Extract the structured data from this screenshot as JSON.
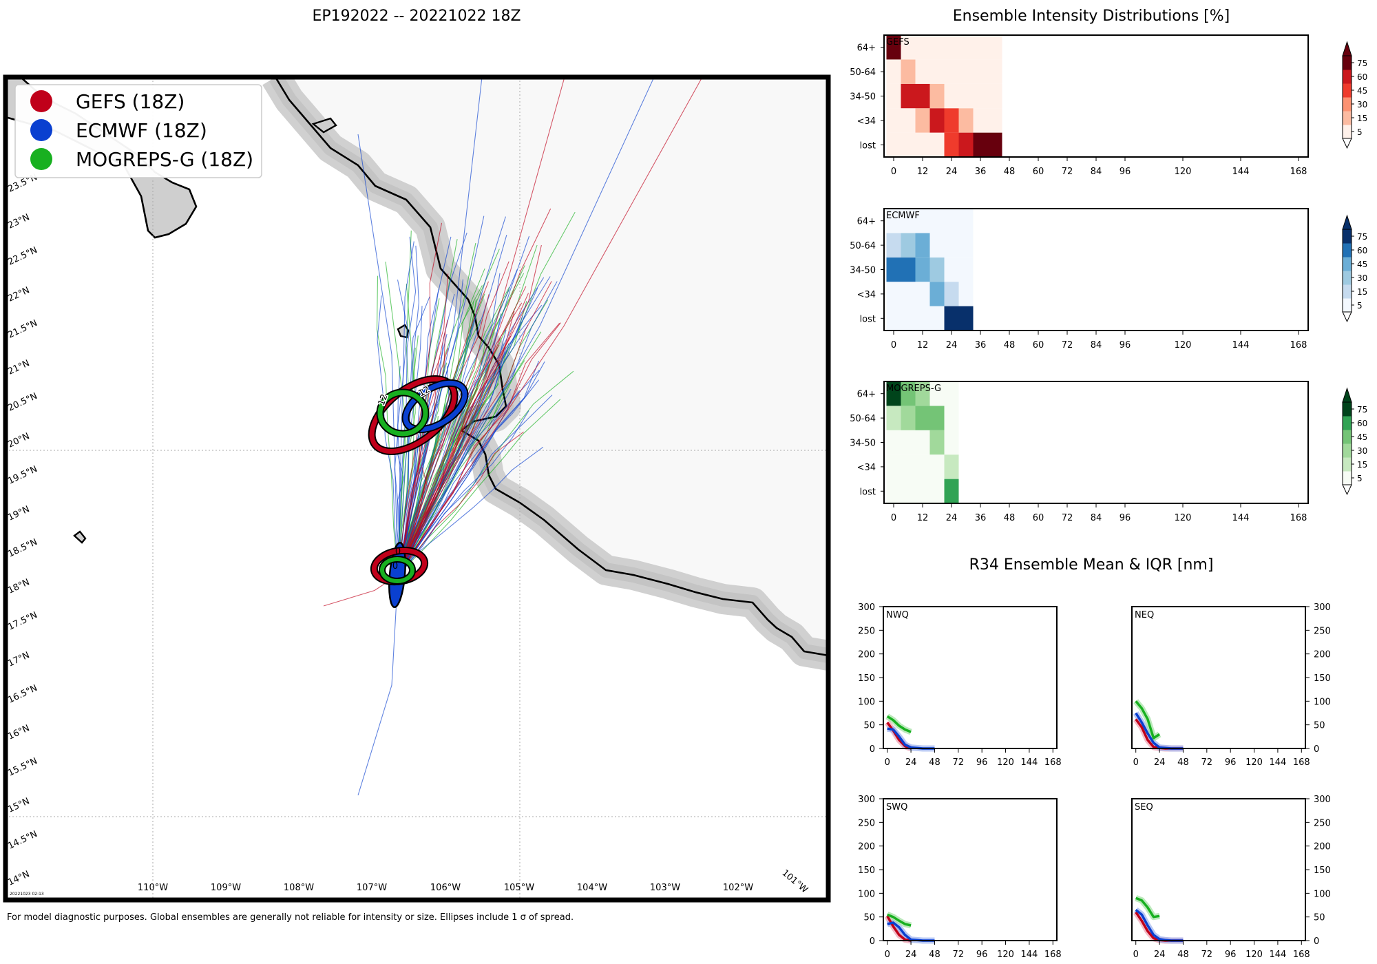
{
  "titles": {
    "main": "EP192022 -- 20221022 18Z",
    "intensity": "Ensemble Intensity Distributions [%]",
    "r34": "R34 Ensemble Mean & IQR [nm]"
  },
  "footer": {
    "disclaimer": "For model diagnostic purposes. Global ensembles are generally not reliable for intensity or size. Ellipses include 1 σ of spread.",
    "stamp": "20221023 02:13"
  },
  "colors": {
    "gefs": "#c0001a",
    "ecmwf": "#0a40d0",
    "mogreps": "#18b020",
    "land": "#f8f8f8",
    "coastal_shade": "#cfcfcf"
  },
  "legend": [
    {
      "label": "GEFS (18Z)",
      "color": "#c0001a"
    },
    {
      "label": "ECMWF (18Z)",
      "color": "#0a40d0"
    },
    {
      "label": "MOGREPS-G (18Z)",
      "color": "#18b020"
    }
  ],
  "map": {
    "lon_labels": [
      "110°W",
      "109°W",
      "108°W",
      "107°W",
      "106°W",
      "105°W",
      "104°W",
      "103°W",
      "102°W",
      "101°W"
    ],
    "lat_labels": [
      "14°N",
      "14.5°N",
      "15°N",
      "15.5°N",
      "16°N",
      "16.5°N",
      "17°N",
      "17.5°N",
      "18°N",
      "18.5°N",
      "19°N",
      "19.5°N",
      "20°N",
      "20.5°N",
      "21°N",
      "21.5°N",
      "22°N",
      "22.5°N",
      "23°N",
      "23.5°N"
    ],
    "ellipse_labels": {
      "t0": "0",
      "t12": "12"
    }
  },
  "chart_data": [
    {
      "type": "heatmap",
      "title": "GEFS",
      "x_ticks": [
        0,
        12,
        24,
        36,
        48,
        60,
        72,
        84,
        96,
        120,
        144,
        168
      ],
      "y_categories": [
        "lost",
        "<34",
        "34-50",
        "50-64",
        "64+"
      ],
      "colorbar_ticks": [
        5,
        15,
        30,
        45,
        60,
        75
      ],
      "colormap": [
        "#fff1ea",
        "#fcbba1",
        "#fc9272",
        "#ef3b2c",
        "#cb181d",
        "#67000d"
      ],
      "columns_hours": [
        0,
        6,
        12,
        18,
        24,
        30,
        36,
        42
      ],
      "values": {
        "64+": [
          90,
          3,
          3,
          3,
          3,
          3,
          3,
          3
        ],
        "50-64": [
          3,
          25,
          3,
          3,
          3,
          3,
          3,
          3
        ],
        "34-50": [
          3,
          65,
          65,
          25,
          3,
          3,
          3,
          3
        ],
        "<34": [
          3,
          3,
          25,
          60,
          50,
          25,
          3,
          3
        ],
        "lost": [
          3,
          3,
          3,
          12,
          50,
          60,
          85,
          85
        ]
      }
    },
    {
      "type": "heatmap",
      "title": "ECMWF",
      "x_ticks": [
        0,
        12,
        24,
        36,
        48,
        60,
        72,
        84,
        96,
        120,
        144,
        168
      ],
      "y_categories": [
        "lost",
        "<34",
        "34-50",
        "50-64",
        "64+"
      ],
      "colorbar_ticks": [
        5,
        15,
        30,
        45,
        60,
        75
      ],
      "colormap": [
        "#f3f8fe",
        "#c6dbef",
        "#9ecae1",
        "#6baed6",
        "#2171b5",
        "#08306b"
      ],
      "columns_hours": [
        0,
        6,
        12,
        18,
        24,
        30
      ],
      "values": {
        "64+": [
          3,
          3,
          12,
          3,
          3,
          3
        ],
        "50-64": [
          20,
          35,
          45,
          12,
          3,
          3
        ],
        "34-50": [
          60,
          60,
          45,
          35,
          3,
          3
        ],
        "<34": [
          3,
          3,
          3,
          45,
          25,
          3
        ],
        "lost": [
          3,
          3,
          3,
          12,
          85,
          85
        ]
      }
    },
    {
      "type": "heatmap",
      "title": "MOGREPS-G",
      "x_ticks": [
        0,
        12,
        24,
        36,
        48,
        60,
        72,
        84,
        96,
        120,
        144,
        168
      ],
      "y_categories": [
        "lost",
        "<34",
        "34-50",
        "50-64",
        "64+"
      ],
      "colorbar_ticks": [
        5,
        15,
        30,
        45,
        60,
        75
      ],
      "colormap": [
        "#f7fcf5",
        "#c7e9c0",
        "#a1d99b",
        "#74c476",
        "#31a354",
        "#00441b"
      ],
      "columns_hours": [
        0,
        6,
        12,
        18,
        24
      ],
      "values": {
        "64+": [
          85,
          50,
          35,
          8,
          3
        ],
        "50-64": [
          20,
          30,
          55,
          55,
          3
        ],
        "34-50": [
          3,
          3,
          3,
          35,
          3
        ],
        "<34": [
          3,
          3,
          3,
          3,
          20
        ],
        "lost": [
          3,
          3,
          3,
          3,
          60
        ]
      }
    },
    {
      "type": "line",
      "title": "NWQ",
      "x_ticks": [
        0,
        24,
        48,
        72,
        96,
        120,
        144,
        168
      ],
      "y_ticks": [
        0,
        50,
        100,
        150,
        200,
        250,
        300
      ],
      "ylim": [
        0,
        300
      ],
      "xlim": [
        -4,
        172
      ],
      "y_axis_side": "left",
      "series": [
        {
          "name": "GEFS",
          "x": [
            0,
            6,
            12,
            18,
            24
          ],
          "values": [
            55,
            38,
            18,
            5,
            0
          ]
        },
        {
          "name": "ECMWF",
          "x": [
            0,
            6,
            12,
            18,
            24,
            30,
            36,
            42,
            48
          ],
          "values": [
            42,
            40,
            25,
            8,
            2,
            1,
            0,
            0,
            0
          ]
        },
        {
          "name": "MOGREPS-G",
          "x": [
            0,
            6,
            12,
            18,
            24
          ],
          "values": [
            68,
            60,
            48,
            40,
            35
          ]
        }
      ]
    },
    {
      "type": "line",
      "title": "NEQ",
      "x_ticks": [
        0,
        24,
        48,
        72,
        96,
        120,
        144,
        168
      ],
      "y_ticks": [
        0,
        50,
        100,
        150,
        200,
        250,
        300
      ],
      "ylim": [
        0,
        300
      ],
      "xlim": [
        -4,
        172
      ],
      "y_axis_side": "right",
      "series": [
        {
          "name": "GEFS",
          "x": [
            0,
            6,
            12,
            18,
            24,
            30,
            36,
            42,
            48
          ],
          "values": [
            62,
            45,
            18,
            3,
            1,
            0,
            0,
            0,
            0
          ]
        },
        {
          "name": "ECMWF",
          "x": [
            0,
            6,
            12,
            18,
            24,
            30,
            36,
            42,
            48
          ],
          "values": [
            75,
            55,
            32,
            12,
            2,
            1,
            0,
            0,
            0
          ]
        },
        {
          "name": "MOGREPS-G",
          "x": [
            0,
            6,
            12,
            18,
            24
          ],
          "values": [
            100,
            85,
            62,
            22,
            30
          ]
        }
      ]
    },
    {
      "type": "line",
      "title": "SWQ",
      "x_ticks": [
        0,
        24,
        48,
        72,
        96,
        120,
        144,
        168
      ],
      "y_ticks": [
        0,
        50,
        100,
        150,
        200,
        250,
        300
      ],
      "ylim": [
        0,
        300
      ],
      "xlim": [
        -4,
        172
      ],
      "y_axis_side": "left",
      "series": [
        {
          "name": "GEFS",
          "x": [
            0,
            6,
            12,
            18,
            24
          ],
          "values": [
            52,
            30,
            12,
            2,
            0
          ]
        },
        {
          "name": "ECMWF",
          "x": [
            0,
            6,
            12,
            18,
            24,
            30,
            36,
            42,
            48
          ],
          "values": [
            35,
            38,
            28,
            12,
            2,
            1,
            0,
            0,
            0
          ]
        },
        {
          "name": "MOGREPS-G",
          "x": [
            0,
            6,
            12,
            18,
            24
          ],
          "values": [
            55,
            50,
            42,
            35,
            32
          ]
        }
      ]
    },
    {
      "type": "line",
      "title": "SEQ",
      "x_ticks": [
        0,
        24,
        48,
        72,
        96,
        120,
        144,
        168
      ],
      "y_ticks": [
        0,
        50,
        100,
        150,
        200,
        250,
        300
      ],
      "ylim": [
        0,
        300
      ],
      "xlim": [
        -4,
        172
      ],
      "y_axis_side": "right",
      "series": [
        {
          "name": "GEFS",
          "x": [
            0,
            6,
            12,
            18,
            24,
            30,
            36,
            42,
            48
          ],
          "values": [
            60,
            42,
            20,
            5,
            1,
            0,
            0,
            0,
            0
          ]
        },
        {
          "name": "ECMWF",
          "x": [
            0,
            6,
            12,
            18,
            24,
            30,
            36,
            42,
            48
          ],
          "values": [
            65,
            55,
            32,
            12,
            3,
            1,
            0,
            0,
            0
          ]
        },
        {
          "name": "MOGREPS-G",
          "x": [
            0,
            6,
            12,
            18,
            24
          ],
          "values": [
            90,
            85,
            70,
            50,
            52
          ]
        }
      ]
    }
  ]
}
